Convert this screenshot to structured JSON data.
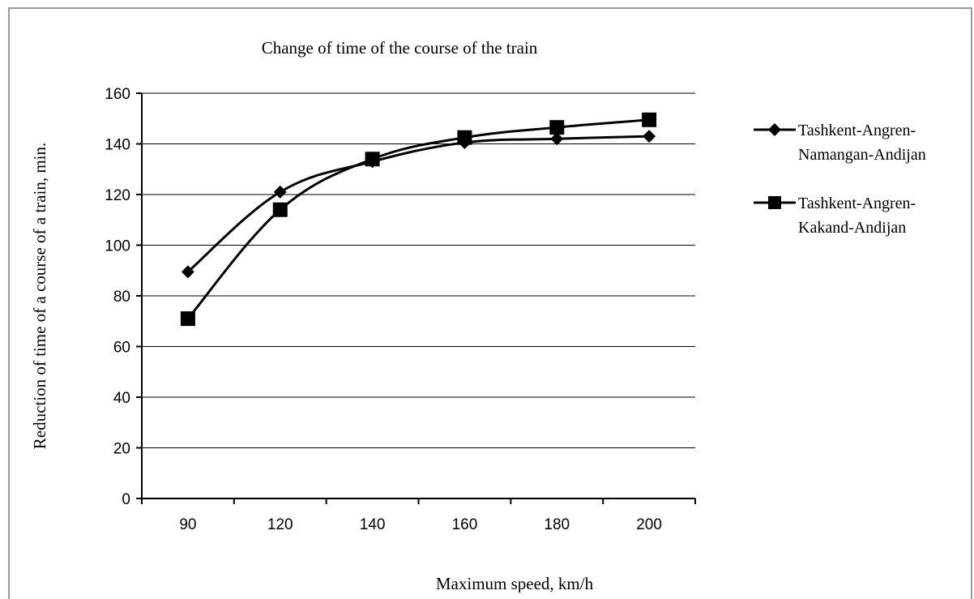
{
  "chart_data": {
    "type": "line",
    "title": "Change of time of the course of the train",
    "xlabel": "Maximum speed,  km/h",
    "ylabel": "Reduction of time of a course of a train, min.",
    "categories": [
      "90",
      "120",
      "140",
      "160",
      "180",
      "200"
    ],
    "ylim": [
      0,
      160
    ],
    "yticks": [
      "0",
      "20",
      "40",
      "60",
      "80",
      "100",
      "120",
      "140",
      "160"
    ],
    "grid": true,
    "legend_position": "right",
    "smooth": true,
    "series": [
      {
        "name": "Tashkent-Angren-Namangan-Andijan",
        "legend_lines": [
          "Tashkent-Angren-",
          "Namangan-Andijan"
        ],
        "marker": "diamond",
        "color": "#000000",
        "values": [
          89.5,
          121,
          133,
          140.5,
          142,
          143
        ]
      },
      {
        "name": "Tashkent-Angren-Kakand-Andijan",
        "legend_lines": [
          "Tashkent-Angren-",
          "Kakand-Andijan"
        ],
        "marker": "square",
        "color": "#000000",
        "values": [
          71,
          114,
          134,
          142.5,
          146.5,
          149.5
        ]
      }
    ]
  }
}
